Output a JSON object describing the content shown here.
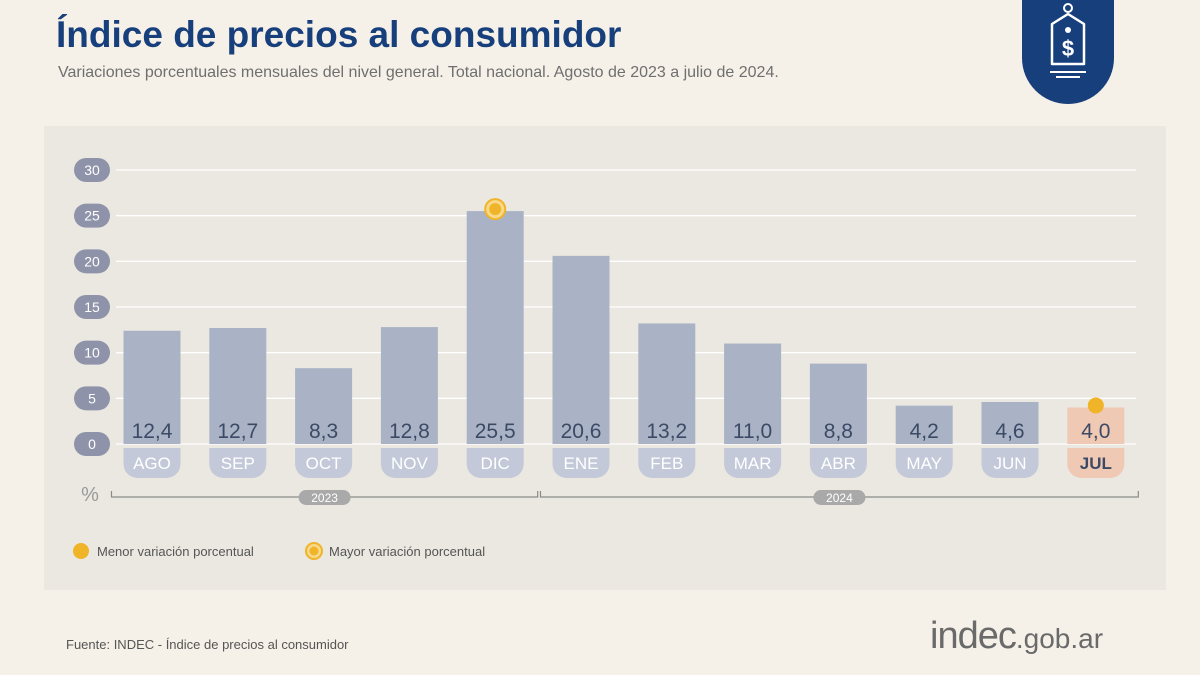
{
  "header": {
    "title": "Índice de precios al consumidor",
    "subtitle": "Variaciones porcentuales mensuales del nivel general. Total nacional. Agosto de 2023 a julio de 2024."
  },
  "badge": {
    "icon": "price-tag-dollar-icon"
  },
  "chart_data": {
    "type": "bar",
    "categories": [
      "AGO",
      "SEP",
      "OCT",
      "NOV",
      "DIC",
      "ENE",
      "FEB",
      "MAR",
      "ABR",
      "MAY",
      "JUN",
      "JUL"
    ],
    "values": [
      12.4,
      12.7,
      8.3,
      12.8,
      25.5,
      20.6,
      13.2,
      11.0,
      8.8,
      4.2,
      4.6,
      4.0
    ],
    "value_labels": [
      "12,4",
      "12,7",
      "8,3",
      "12,8",
      "25,5",
      "20,6",
      "13,2",
      "11,0",
      "8,8",
      "4,2",
      "4,6",
      "4,0"
    ],
    "yticks": [
      0,
      5,
      10,
      15,
      20,
      25,
      30
    ],
    "ylim": [
      0,
      30
    ],
    "ylabel": "%",
    "grid": true,
    "year_groups": [
      {
        "label": "2023",
        "from": 0,
        "to": 4
      },
      {
        "label": "2024",
        "from": 5,
        "to": 11
      }
    ],
    "highlight_min_index": 11,
    "highlight_max_index": 4,
    "legend": {
      "placement": "bottom-left",
      "min_label": "Menor variación porcentual",
      "max_label": "Mayor variación porcentual"
    },
    "colors": {
      "bar": "#aab3c5",
      "bar_highlight": "#f0c9b4",
      "marker": "#f0b429",
      "tick_badge": "#8e93a9",
      "year_badge": "#a9a9a9"
    }
  },
  "footer": {
    "source": "Fuente: INDEC - Índice de precios al consumidor",
    "brand_main": "indec",
    "brand_suffix": ".gob.ar"
  }
}
